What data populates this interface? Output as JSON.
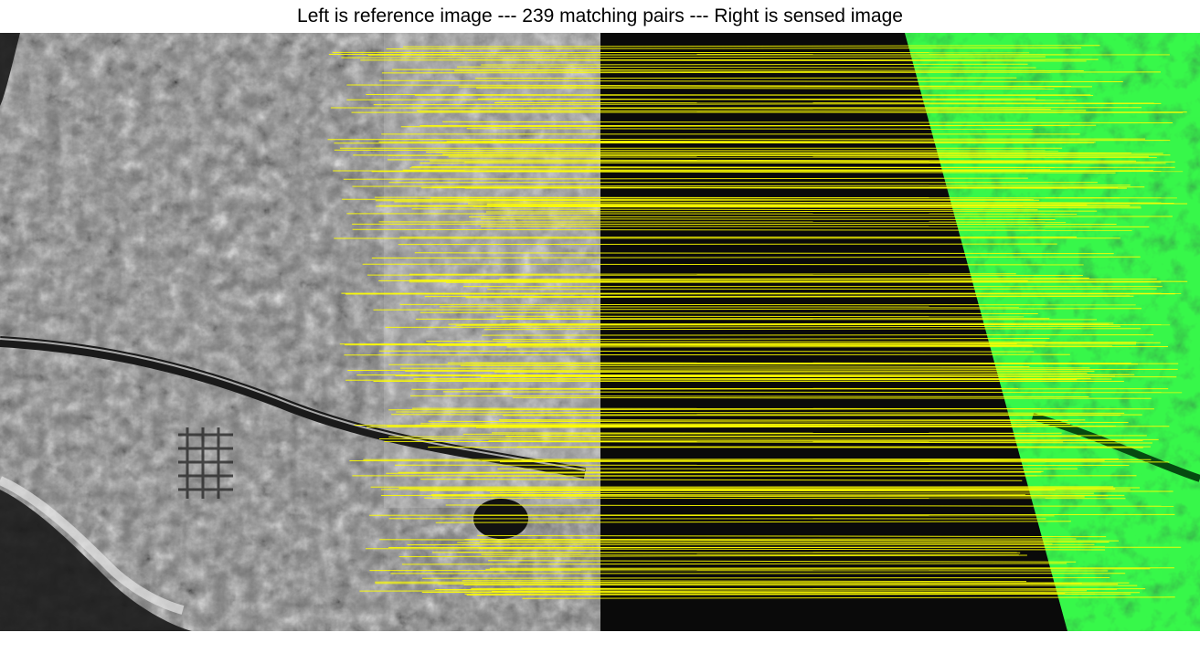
{
  "title": "Left is reference image --- 239 matching pairs --- Right is sensed image",
  "left_image": {
    "kind": "grayscale SAR satellite image"
  },
  "right_image": {
    "kind": "green optical satellite image"
  },
  "colors": {
    "match_line": "#ffff00",
    "sensed_tint": "#22e23a",
    "background": "#0a0a0a"
  },
  "matching_pairs": 239
}
